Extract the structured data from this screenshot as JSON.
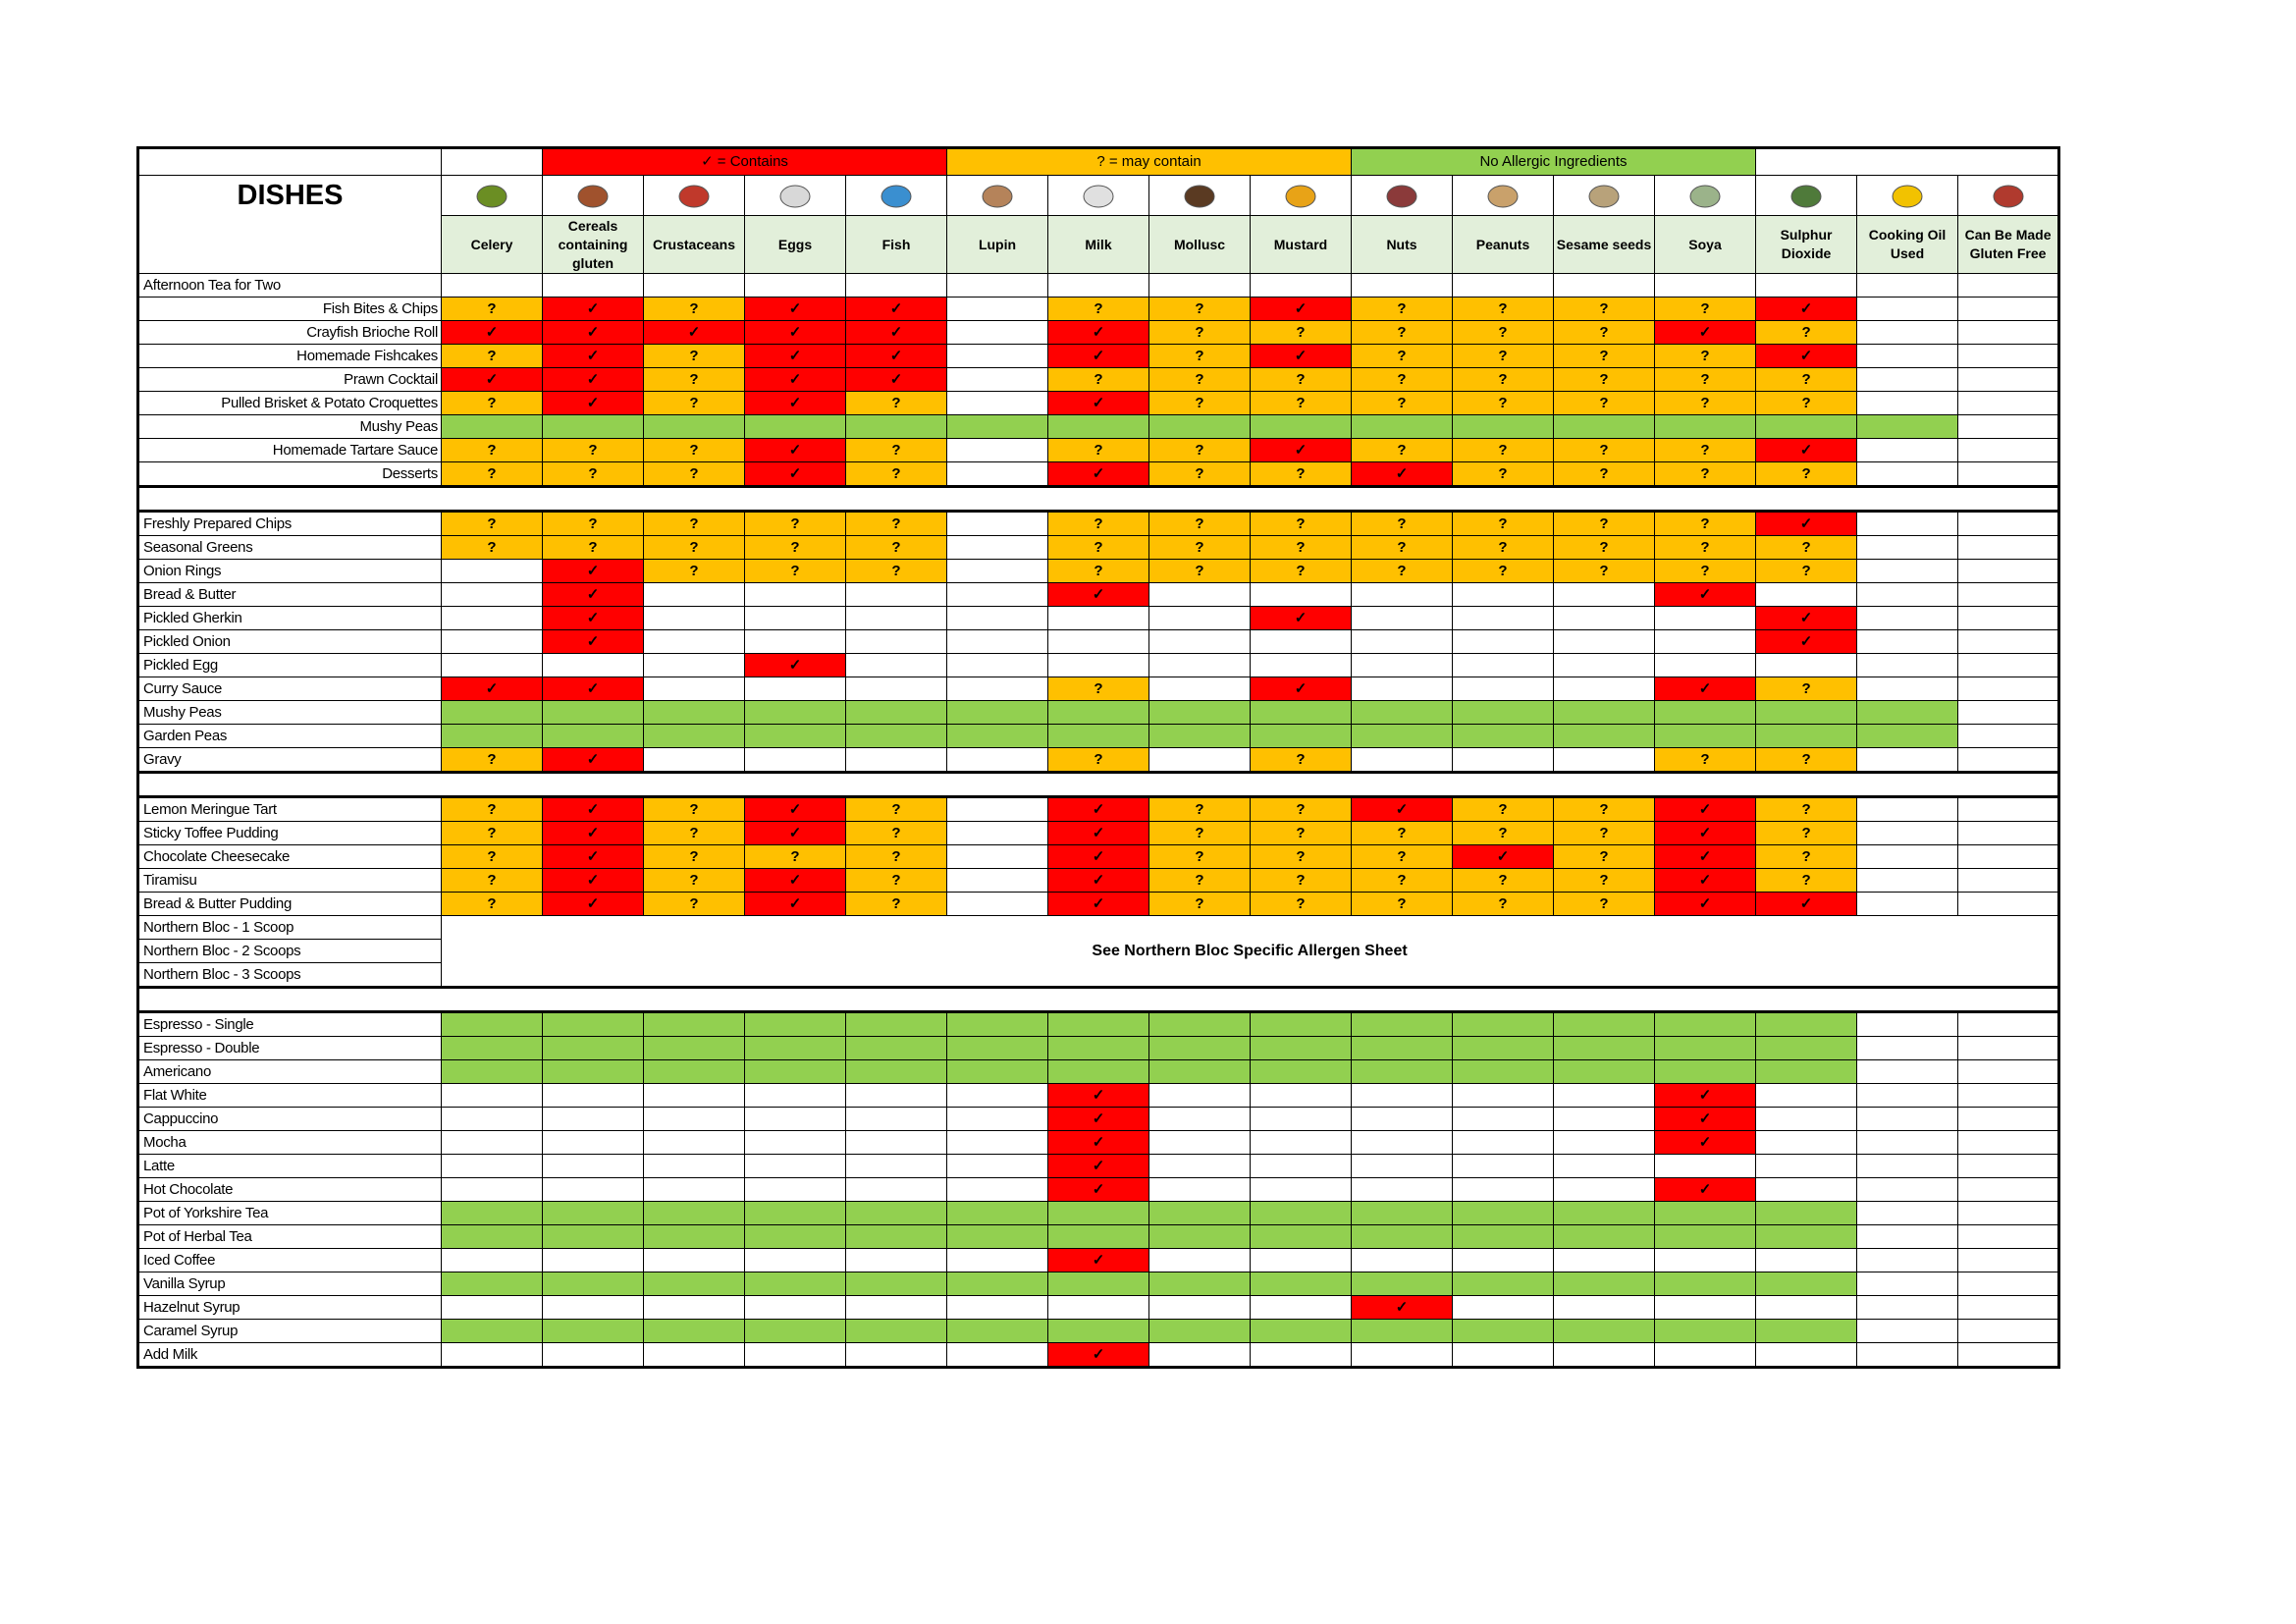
{
  "title": "DISHES",
  "legend": [
    {
      "label": "✓ = Contains",
      "color": "#ff0000"
    },
    {
      "label": "? = may contain",
      "color": "#ffc000"
    },
    {
      "label": "No Allergic Ingredients",
      "color": "#92d050"
    }
  ],
  "columns": [
    "Celery",
    "Cereals containing gluten",
    "Crustaceans",
    "Eggs",
    "Fish",
    "Lupin",
    "Milk",
    "Mollusc",
    "Mustard",
    "Nuts",
    "Peanuts",
    "Sesame seeds",
    "Soya",
    "Sulphur Dioxide",
    "Cooking Oil Used",
    "Can Be Made Gluten Free"
  ],
  "sections": [
    {
      "rows": [
        {
          "dish": "Afternoon Tea for Two",
          "cells": [
            null,
            null,
            null,
            null,
            null,
            null,
            null,
            null,
            null,
            null,
            null,
            null,
            null,
            null,
            null,
            null
          ]
        },
        {
          "dish": "Fish Bites & Chips",
          "cells": [
            "?",
            "✓",
            "?",
            "✓",
            "✓",
            null,
            "?",
            "?",
            "✓",
            "?",
            "?",
            "?",
            "?",
            "✓",
            null,
            null
          ]
        },
        {
          "dish": "Crayfish Brioche Roll",
          "cells": [
            "✓",
            "✓",
            "✓",
            "✓",
            "✓",
            null,
            "✓",
            "?",
            "?",
            "?",
            "?",
            "?",
            "✓",
            "?",
            null,
            null
          ]
        },
        {
          "dish": "Homemade Fishcakes",
          "cells": [
            "?",
            "✓",
            "?",
            "✓",
            "✓",
            null,
            "✓",
            "?",
            "✓",
            "?",
            "?",
            "?",
            "?",
            "✓",
            null,
            null
          ]
        },
        {
          "dish": "Prawn Cocktail",
          "cells": [
            "✓",
            "✓",
            "?",
            "✓",
            "✓",
            null,
            "?",
            "?",
            "?",
            "?",
            "?",
            "?",
            "?",
            "?",
            null,
            null
          ]
        },
        {
          "dish": "Pulled Brisket & Potato Croquettes",
          "cells": [
            "?",
            "✓",
            "?",
            "✓",
            "?",
            null,
            "✓",
            "?",
            "?",
            "?",
            "?",
            "?",
            "?",
            "?",
            null,
            null
          ]
        },
        {
          "dish": "Mushy Peas",
          "cells": [
            "#92d050",
            "#92d050",
            "#92d050",
            "#92d050",
            "#92d050",
            "#92d050",
            "#92d050",
            "#92d050",
            "#92d050",
            "#92d050",
            "#92d050",
            "#92d050",
            "#92d050",
            "#92d050",
            "#92d050",
            null
          ]
        },
        {
          "dish": "Homemade Tartare Sauce",
          "cells": [
            "?",
            "?",
            "?",
            "✓",
            "?",
            null,
            "?",
            "?",
            "✓",
            "?",
            "?",
            "?",
            "?",
            "✓",
            null,
            null
          ]
        },
        {
          "dish": "Desserts",
          "cells": [
            "?",
            "?",
            "?",
            "✓",
            "?",
            null,
            "✓",
            "?",
            "?",
            "✓",
            "?",
            "?",
            "?",
            "?",
            null,
            null
          ]
        }
      ]
    },
    {
      "rows": [
        {
          "dish": "Freshly Prepared Chips",
          "cells": [
            "?",
            "?",
            "?",
            "?",
            "?",
            null,
            "?",
            "?",
            "?",
            "?",
            "?",
            "?",
            "?",
            "✓",
            null,
            null
          ]
        },
        {
          "dish": "Seasonal Greens",
          "cells": [
            "?",
            "?",
            "?",
            "?",
            "?",
            null,
            "?",
            "?",
            "?",
            "?",
            "?",
            "?",
            "?",
            "?",
            null,
            null
          ]
        },
        {
          "dish": "Onion Rings",
          "cells": [
            null,
            "✓",
            "?",
            "?",
            "?",
            null,
            "?",
            "?",
            "?",
            "?",
            "?",
            "?",
            "?",
            "?",
            null,
            null
          ]
        },
        {
          "dish": "Bread & Butter",
          "cells": [
            null,
            "✓",
            null,
            null,
            null,
            null,
            "✓",
            null,
            null,
            null,
            null,
            null,
            "✓",
            null,
            null,
            null
          ]
        },
        {
          "dish": "Pickled Gherkin",
          "cells": [
            null,
            "✓",
            null,
            null,
            null,
            null,
            null,
            null,
            "✓",
            null,
            null,
            null,
            null,
            "✓",
            null,
            null
          ]
        },
        {
          "dish": "Pickled Onion",
          "cells": [
            null,
            "✓",
            null,
            null,
            null,
            null,
            null,
            null,
            null,
            null,
            null,
            null,
            null,
            "✓",
            null,
            null
          ]
        },
        {
          "dish": "Pickled Egg",
          "cells": [
            null,
            null,
            null,
            "✓",
            null,
            null,
            null,
            null,
            null,
            null,
            null,
            null,
            null,
            null,
            null,
            null
          ]
        },
        {
          "dish": "Curry Sauce",
          "cells": [
            "✓",
            "✓",
            null,
            null,
            null,
            null,
            "?",
            null,
            "✓",
            null,
            null,
            null,
            "✓",
            "?",
            null,
            null
          ]
        },
        {
          "dish": "Mushy Peas",
          "cells": [
            "#92d050",
            "#92d050",
            "#92d050",
            "#92d050",
            "#92d050",
            "#92d050",
            "#92d050",
            "#92d050",
            "#92d050",
            "#92d050",
            "#92d050",
            "#92d050",
            "#92d050",
            "#92d050",
            "#92d050",
            null
          ]
        },
        {
          "dish": "Garden Peas",
          "cells": [
            "#92d050",
            "#92d050",
            "#92d050",
            "#92d050",
            "#92d050",
            "#92d050",
            "#92d050",
            "#92d050",
            "#92d050",
            "#92d050",
            "#92d050",
            "#92d050",
            "#92d050",
            "#92d050",
            "#92d050",
            null
          ]
        },
        {
          "dish": "Gravy",
          "cells": [
            "?",
            "✓",
            null,
            null,
            null,
            null,
            "?",
            null,
            "?",
            null,
            null,
            null,
            "?",
            "?",
            null,
            null
          ]
        }
      ]
    },
    {
      "note": "See Northern Bloc Specific Allergen Sheet",
      "rows": [
        {
          "dish": "Lemon Meringue Tart",
          "cells": [
            "?",
            "✓",
            "?",
            "✓",
            "?",
            null,
            "✓",
            "?",
            "?",
            "✓",
            "?",
            "?",
            "✓",
            "?",
            null,
            null
          ]
        },
        {
          "dish": "Sticky Toffee Pudding",
          "cells": [
            "?",
            "✓",
            "?",
            "✓",
            "?",
            null,
            "✓",
            "?",
            "?",
            "?",
            "?",
            "?",
            "✓",
            "?",
            null,
            null
          ]
        },
        {
          "dish": "Chocolate Cheesecake",
          "cells": [
            "?",
            "✓",
            "?",
            "?",
            "?",
            null,
            "✓",
            "?",
            "?",
            "?",
            "✓",
            "?",
            "✓",
            "?",
            null,
            null
          ]
        },
        {
          "dish": "Tiramisu",
          "cells": [
            "?",
            "✓",
            "?",
            "✓",
            "?",
            null,
            "✓",
            "?",
            "?",
            "?",
            "?",
            "?",
            "✓",
            "?",
            null,
            null
          ]
        },
        {
          "dish": "Bread & Butter Pudding",
          "cells": [
            "?",
            "✓",
            "?",
            "✓",
            "?",
            null,
            "✓",
            "?",
            "?",
            "?",
            "?",
            "?",
            "✓",
            "✓",
            null,
            null
          ]
        },
        {
          "dish": "Northern Bloc - 1 Scoop"
        },
        {
          "dish": "Northern Bloc - 2 Scoops"
        },
        {
          "dish": "Northern Bloc - 3 Scoops"
        }
      ]
    },
    {
      "rows": [
        {
          "dish": "Espresso - Single",
          "cells": [
            "#92d050",
            "#92d050",
            "#92d050",
            "#92d050",
            "#92d050",
            "#92d050",
            "#92d050",
            "#92d050",
            "#92d050",
            "#92d050",
            "#92d050",
            "#92d050",
            "#92d050",
            "#92d050",
            null,
            null
          ]
        },
        {
          "dish": "Espresso - Double",
          "cells": [
            "#92d050",
            "#92d050",
            "#92d050",
            "#92d050",
            "#92d050",
            "#92d050",
            "#92d050",
            "#92d050",
            "#92d050",
            "#92d050",
            "#92d050",
            "#92d050",
            "#92d050",
            "#92d050",
            null,
            null
          ]
        },
        {
          "dish": "Americano",
          "cells": [
            "#92d050",
            "#92d050",
            "#92d050",
            "#92d050",
            "#92d050",
            "#92d050",
            "#92d050",
            "#92d050",
            "#92d050",
            "#92d050",
            "#92d050",
            "#92d050",
            "#92d050",
            "#92d050",
            null,
            null
          ]
        },
        {
          "dish": "Flat White",
          "cells": [
            null,
            null,
            null,
            null,
            null,
            null,
            "✓",
            null,
            null,
            null,
            null,
            null,
            "✓",
            null,
            null,
            null
          ]
        },
        {
          "dish": "Cappuccino",
          "cells": [
            null,
            null,
            null,
            null,
            null,
            null,
            "✓",
            null,
            null,
            null,
            null,
            null,
            "✓",
            null,
            null,
            null
          ]
        },
        {
          "dish": "Mocha",
          "cells": [
            null,
            null,
            null,
            null,
            null,
            null,
            "✓",
            null,
            null,
            null,
            null,
            null,
            "✓",
            null,
            null,
            null
          ]
        },
        {
          "dish": "Latte",
          "cells": [
            null,
            null,
            null,
            null,
            null,
            null,
            "✓",
            null,
            null,
            null,
            null,
            null,
            null,
            null,
            null,
            null
          ]
        },
        {
          "dish": "Hot Chocolate",
          "cells": [
            null,
            null,
            null,
            null,
            null,
            null,
            "✓",
            null,
            null,
            null,
            null,
            null,
            "✓",
            null,
            null,
            null
          ]
        },
        {
          "dish": "Pot of Yorkshire Tea",
          "cells": [
            "#92d050",
            "#92d050",
            "#92d050",
            "#92d050",
            "#92d050",
            "#92d050",
            "#92d050",
            "#92d050",
            "#92d050",
            "#92d050",
            "#92d050",
            "#92d050",
            "#92d050",
            "#92d050",
            null,
            null
          ]
        },
        {
          "dish": "Pot of Herbal Tea",
          "cells": [
            "#92d050",
            "#92d050",
            "#92d050",
            "#92d050",
            "#92d050",
            "#92d050",
            "#92d050",
            "#92d050",
            "#92d050",
            "#92d050",
            "#92d050",
            "#92d050",
            "#92d050",
            "#92d050",
            null,
            null
          ]
        },
        {
          "dish": "Iced Coffee",
          "cells": [
            null,
            null,
            null,
            null,
            null,
            null,
            "✓",
            null,
            null,
            null,
            null,
            null,
            null,
            null,
            null,
            null
          ]
        },
        {
          "dish": "Vanilla Syrup",
          "cells": [
            "#92d050",
            "#92d050",
            "#92d050",
            "#92d050",
            "#92d050",
            "#92d050",
            "#92d050",
            "#92d050",
            "#92d050",
            "#92d050",
            "#92d050",
            "#92d050",
            "#92d050",
            "#92d050",
            null,
            null
          ]
        },
        {
          "dish": "Hazelnut Syrup",
          "cells": [
            null,
            null,
            null,
            null,
            null,
            null,
            null,
            null,
            null,
            "✓",
            null,
            null,
            null,
            null,
            null,
            null
          ]
        },
        {
          "dish": "Caramel Syrup",
          "cells": [
            "#92d050",
            "#92d050",
            "#92d050",
            "#92d050",
            "#92d050",
            "#92d050",
            "#92d050",
            "#92d050",
            "#92d050",
            "#92d050",
            "#92d050",
            "#92d050",
            "#92d050",
            "#92d050",
            null,
            null
          ]
        },
        {
          "dish": "Add Milk",
          "cells": [
            null,
            null,
            null,
            null,
            null,
            null,
            "✓",
            null,
            null,
            null,
            null,
            null,
            null,
            null,
            null,
            null
          ]
        }
      ]
    }
  ]
}
